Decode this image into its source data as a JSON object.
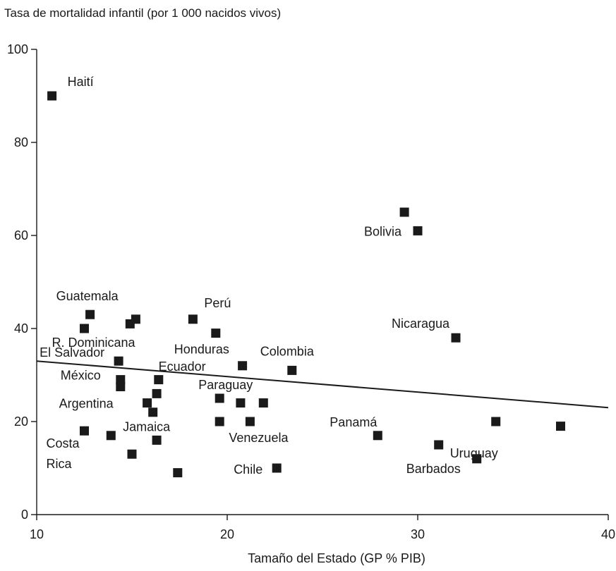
{
  "chart_data": {
    "type": "scatter",
    "title": "Tasa de mortalidad infantil (por 1 000 nacidos vivos)",
    "xlabel": "Tamaño del Estado (GP % PIB)",
    "ylabel": "",
    "xlim": [
      10,
      40
    ],
    "ylim": [
      0,
      100
    ],
    "xticks": [
      "10",
      "20",
      "30",
      "40"
    ],
    "yticks": [
      "0",
      "20",
      "40",
      "60",
      "80",
      "100"
    ],
    "grid": false,
    "legend": "none",
    "marker_color": "#1a1a1a",
    "points": [
      {
        "x": 10.8,
        "y": 90,
        "label": "Haití"
      },
      {
        "x": 12.8,
        "y": 43,
        "label": "Guatemala"
      },
      {
        "x": 12.5,
        "y": 40,
        "label": "R. Dominicana"
      },
      {
        "x": 14.3,
        "y": 33,
        "label": "El Salvador"
      },
      {
        "x": 14.4,
        "y": 29,
        "label": "México"
      },
      {
        "x": 14.4,
        "y": 27.5,
        "label": ""
      },
      {
        "x": 14.9,
        "y": 41,
        "label": ""
      },
      {
        "x": 15.2,
        "y": 42,
        "label": ""
      },
      {
        "x": 15.8,
        "y": 24,
        "label": "Argentina"
      },
      {
        "x": 16.1,
        "y": 22,
        "label": ""
      },
      {
        "x": 16.3,
        "y": 26,
        "label": ""
      },
      {
        "x": 16.4,
        "y": 29,
        "label": ""
      },
      {
        "x": 12.5,
        "y": 18,
        "label": "Costa Rica"
      },
      {
        "x": 13.9,
        "y": 17,
        "label": ""
      },
      {
        "x": 15.0,
        "y": 13,
        "label": ""
      },
      {
        "x": 16.3,
        "y": 16,
        "label": "Jamaica"
      },
      {
        "x": 17.4,
        "y": 9,
        "label": ""
      },
      {
        "x": 18.2,
        "y": 42,
        "label": "Perú"
      },
      {
        "x": 19.4,
        "y": 39,
        "label": "Honduras"
      },
      {
        "x": 20.8,
        "y": 32,
        "label": "Ecuador"
      },
      {
        "x": 23.4,
        "y": 31,
        "label": "Colombia"
      },
      {
        "x": 19.6,
        "y": 25,
        "label": "Paraguay"
      },
      {
        "x": 19.6,
        "y": 20,
        "label": ""
      },
      {
        "x": 20.7,
        "y": 24,
        "label": ""
      },
      {
        "x": 21.9,
        "y": 24,
        "label": ""
      },
      {
        "x": 21.2,
        "y": 20,
        "label": "Venezuela"
      },
      {
        "x": 22.6,
        "y": 10,
        "label": "Chile"
      },
      {
        "x": 27.9,
        "y": 17,
        "label": "Panamá"
      },
      {
        "x": 29.3,
        "y": 65,
        "label": ""
      },
      {
        "x": 30.0,
        "y": 61,
        "label": "Bolivia"
      },
      {
        "x": 32.0,
        "y": 38,
        "label": "Nicaragua"
      },
      {
        "x": 31.1,
        "y": 15,
        "label": "Uruguay"
      },
      {
        "x": 33.1,
        "y": 12,
        "label": "Barbados"
      },
      {
        "x": 34.1,
        "y": 20,
        "label": ""
      },
      {
        "x": 37.5,
        "y": 19,
        "label": ""
      }
    ],
    "trendline": {
      "x": [
        10,
        40
      ],
      "y": [
        33,
        23
      ]
    }
  }
}
